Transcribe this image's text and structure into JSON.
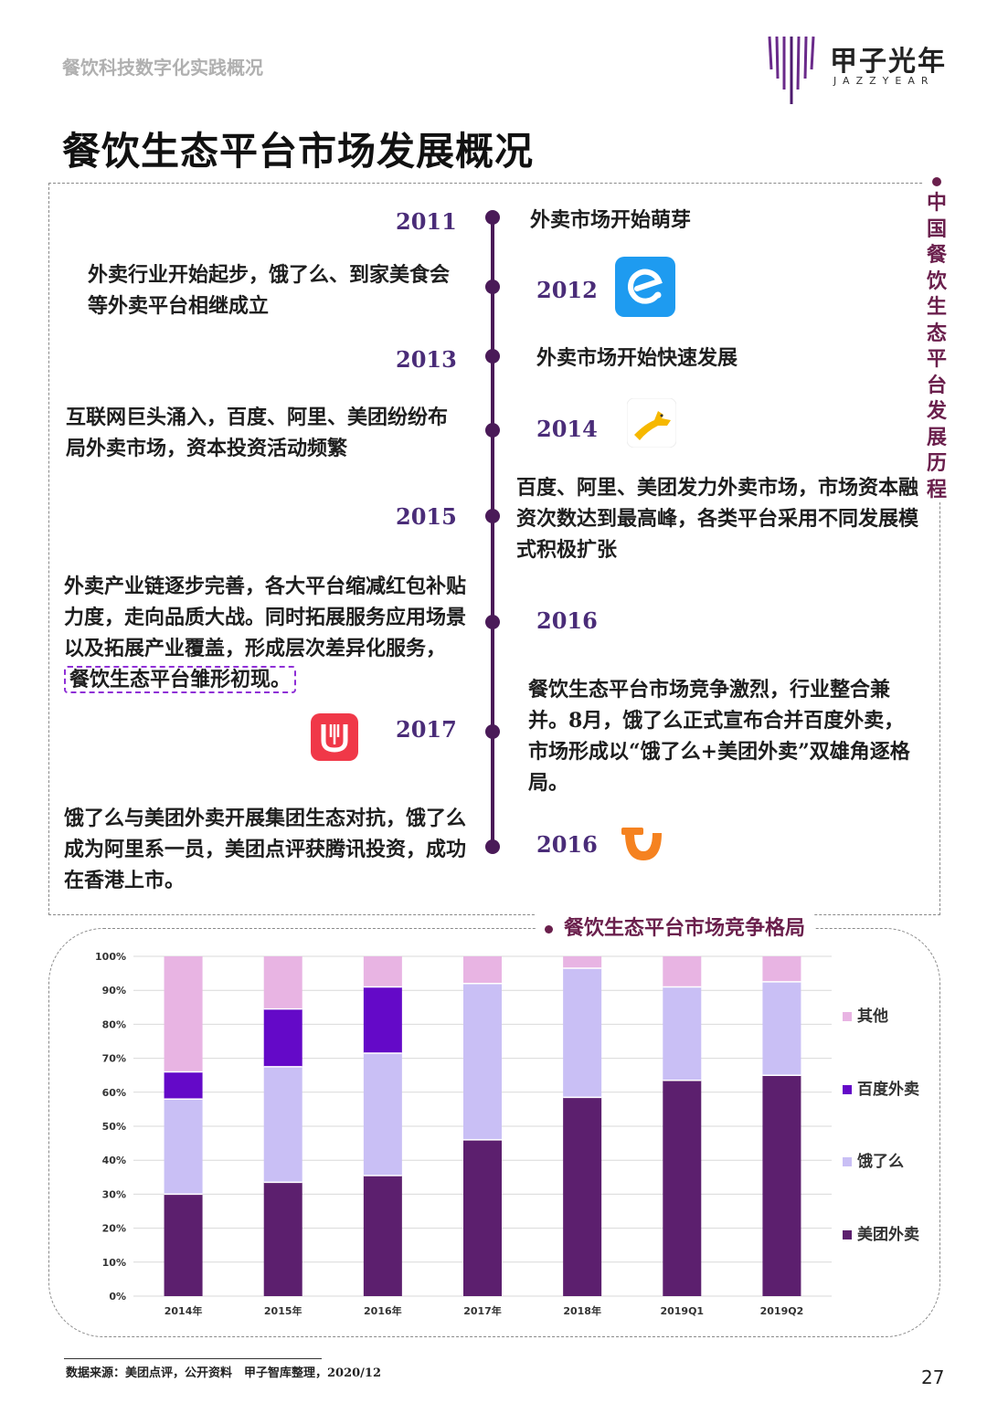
{
  "header": {
    "section_title": "餐饮科技数字化实践概况"
  },
  "logo": {
    "cn": "甲子光年",
    "en": "JAZZYEAR"
  },
  "page": {
    "title": "餐饮生态平台市场发展概况",
    "number": "27"
  },
  "timeline": {
    "side_title": [
      "中",
      "国",
      "餐",
      "饮",
      "生",
      "态",
      "平",
      "台",
      "发",
      "展",
      "历",
      "程"
    ],
    "entries": [
      {
        "year": "2011",
        "text": "外卖市场开始萌芽"
      },
      {
        "year": "2012",
        "text": "外卖行业开始起步，饿了么、到家美食会等外卖平台相继成立",
        "icon": "eleme-logo-icon"
      },
      {
        "year": "2013",
        "text": "外卖市场开始快速发展"
      },
      {
        "year": "2014",
        "text": "互联网巨头涌入，百度、阿里、美团纷纷布局外卖市场，资本投资活动频繁",
        "icon": "baidu-waimai-kangaroo-icon"
      },
      {
        "year": "2015",
        "text": "百度、阿里、美团发力外卖市场，市场资本融资次数达到最高峰，各类平台采用不同发展模式积极扩张"
      },
      {
        "year": "2016",
        "text_plain": "外卖产业链逐步完善，各大平台缩减红包补贴力度，走向品质大战。同时拓展服务应用场景以及拓展产业覆盖，形成层次差异化服务，",
        "text_highlight": "餐饮生态平台雏形初现。"
      },
      {
        "year": "2017",
        "text": "餐饮生态平台市场竞争激烈，行业整合兼并。8月，饿了么正式宣布合并百度外卖，市场形成以“饿了么+美团外卖”双雄角逐格局。",
        "icon": "meituan-waimai-logo-icon"
      },
      {
        "year": "2016",
        "text": "饿了么与美团外卖开展集团生态对抗，饿了么成为阿里系一员，美团点评获腾讯投资，成功在香港上市。",
        "icon": "didi-food-logo-icon"
      }
    ]
  },
  "chart_data": {
    "type": "bar",
    "stacked": true,
    "title": "餐饮生态平台市场竞争格局",
    "categories": [
      "2014年",
      "2015年",
      "2016年",
      "2017年",
      "2018年",
      "2019Q1",
      "2019Q2"
    ],
    "yticks": [
      "0%",
      "10%",
      "20%",
      "30%",
      "40%",
      "50%",
      "60%",
      "70%",
      "80%",
      "90%",
      "100%"
    ],
    "ylim": [
      0,
      100
    ],
    "series": [
      {
        "name": "美团外卖",
        "color": "#5c1f6e",
        "values": [
          30,
          33.5,
          35.5,
          46,
          58.5,
          63.5,
          65
        ]
      },
      {
        "name": "饿了么",
        "color": "#c9bff5",
        "values": [
          28,
          34,
          36,
          46,
          38,
          27.5,
          27.5
        ]
      },
      {
        "name": "百度外卖",
        "color": "#6409c8",
        "values": [
          8,
          17,
          19.5,
          0,
          0,
          0,
          0
        ]
      },
      {
        "name": "其他",
        "color": "#e8b4e3",
        "values": [
          34,
          15.5,
          9,
          8,
          3.5,
          9,
          7.5
        ]
      }
    ],
    "legend": {
      "placement": "right",
      "order": [
        "其他",
        "百度外卖",
        "饿了么",
        "美团外卖"
      ]
    }
  },
  "source": {
    "text": "数据来源：美团点评，公开资料　甲子智库整理，2020/12"
  }
}
